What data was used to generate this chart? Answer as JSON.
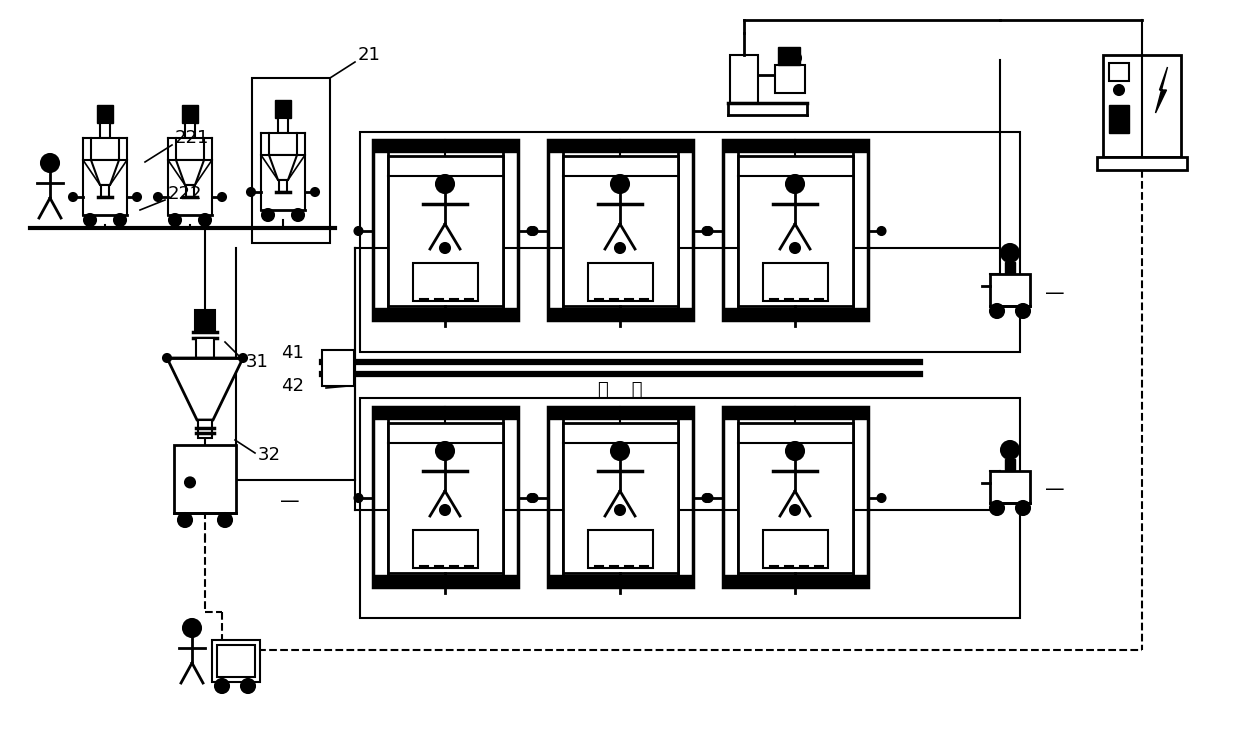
{
  "bg_color": "#ffffff",
  "fig_width": 12.4,
  "fig_height": 7.52,
  "dpi": 100,
  "conveyor_text": "轨    道"
}
